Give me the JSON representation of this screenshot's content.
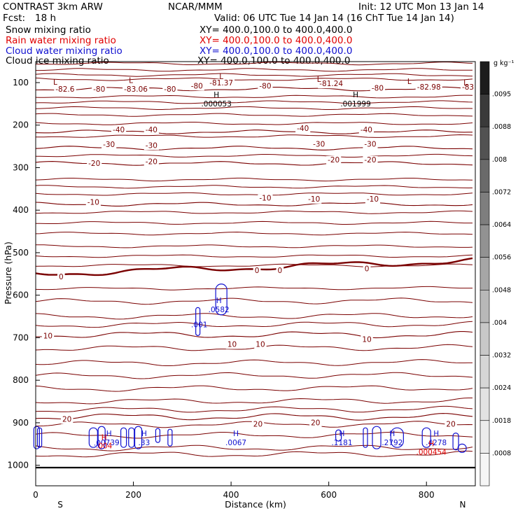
{
  "header": {
    "model": "CONTRAST  3km ARW",
    "org": "NCAR/MMM",
    "init": "Init: 12 UTC Mon 13 Jan 14",
    "fcst_label": "Fcst:",
    "fcst_value": "18 h",
    "valid": "Valid: 06 UTC Tue 14 Jan 14 (16 ChT Tue 14 Jan 14)"
  },
  "fields": [
    {
      "name": "Snow mixing ratio",
      "xy": "XY= 400.0,100.0 to 400.0,400.0",
      "color": "#000000"
    },
    {
      "name": "Rain water mixing ratio",
      "xy": "XY= 400.0,100.0 to 400.0,400.0",
      "color": "#e00000"
    },
    {
      "name": "Cloud water mixing ratio",
      "xy": "XY= 400.0,100.0 to 400.0,400.0",
      "color": "#1010d0"
    },
    {
      "name": "Cloud ice mixing ratio",
      "xy": "XY= 400.0,100.0 to 400.0,400.0",
      "color": "#000000"
    }
  ],
  "colors": {
    "temperature": "#7a0000",
    "cloud_water": "#1010d0",
    "rain": "#e00000",
    "frame": "#000000"
  },
  "chart_data": {
    "type": "contour",
    "xlabel": "Distance (km)",
    "ylabel": "Pressure (hPa)",
    "x_range": [
      0,
      900
    ],
    "y_range": [
      1040,
      40
    ],
    "x_ticks": [
      0,
      200,
      400,
      600,
      800
    ],
    "y_ticks": [
      100,
      200,
      300,
      400,
      500,
      600,
      700,
      800,
      900,
      1000
    ],
    "x_end_labels": {
      "left": "S",
      "right": "N"
    },
    "colorbar": {
      "unit": "g kg⁻¹",
      "labels": [
        ".0095",
        ".0088",
        ".008",
        ".0072",
        ".0064",
        ".0056",
        ".0048",
        ".004",
        ".0032",
        ".0024",
        ".0018",
        ".0008"
      ],
      "shades": [
        "#1c1c1c",
        "#3a3a3a",
        "#525252",
        "#6a6a6a",
        "#7e7e7e",
        "#929292",
        "#a6a6a6",
        "#b8b8b8",
        "#c8c8c8",
        "#d6d6d6",
        "#e2e2e2",
        "#ececec",
        "#f6f6f6"
      ]
    },
    "temperature_isotherms": [
      {
        "level": -80,
        "pressure": 115
      },
      {
        "level": -40,
        "pressure": 216
      },
      {
        "level": -30,
        "pressure": 254
      },
      {
        "level": -20,
        "pressure": 290
      },
      {
        "level": -10,
        "pressure": 386
      },
      {
        "level": 0,
        "pressure": 550
      },
      {
        "level": 10,
        "pressure": 693
      },
      {
        "level": 20,
        "pressure": 886
      }
    ],
    "temperature_labels": [
      {
        "x": 60,
        "p": 115,
        "text": "-82.6"
      },
      {
        "x": 130,
        "p": 115,
        "text": "-80"
      },
      {
        "x": 205,
        "p": 115,
        "text": "-83.06"
      },
      {
        "x": 275,
        "p": 115,
        "text": "-80"
      },
      {
        "x": 330,
        "p": 107,
        "text": "-80"
      },
      {
        "x": 380,
        "p": 100,
        "text": "-81.37"
      },
      {
        "x": 470,
        "p": 107,
        "text": "-80"
      },
      {
        "x": 605,
        "p": 102,
        "text": "-81.24"
      },
      {
        "x": 700,
        "p": 112,
        "text": "-80"
      },
      {
        "x": 805,
        "p": 110,
        "text": "-82.98"
      },
      {
        "x": 885,
        "p": 110,
        "text": "-83"
      },
      {
        "x": 170,
        "p": 210,
        "text": "-40"
      },
      {
        "x": 237,
        "p": 210,
        "text": "-40"
      },
      {
        "x": 547,
        "p": 207,
        "text": "-40"
      },
      {
        "x": 677,
        "p": 210,
        "text": "-40"
      },
      {
        "x": 150,
        "p": 245,
        "text": "-30"
      },
      {
        "x": 237,
        "p": 247,
        "text": "-30"
      },
      {
        "x": 580,
        "p": 244,
        "text": "-30"
      },
      {
        "x": 685,
        "p": 244,
        "text": "-30"
      },
      {
        "x": 120,
        "p": 289,
        "text": "-20"
      },
      {
        "x": 237,
        "p": 285,
        "text": "-20"
      },
      {
        "x": 610,
        "p": 281,
        "text": "-20"
      },
      {
        "x": 685,
        "p": 281,
        "text": "-20"
      },
      {
        "x": 118,
        "p": 381,
        "text": "-10"
      },
      {
        "x": 470,
        "p": 371,
        "text": "-10"
      },
      {
        "x": 570,
        "p": 373,
        "text": "-10"
      },
      {
        "x": 690,
        "p": 373,
        "text": "-10"
      },
      {
        "x": 52,
        "p": 556,
        "text": "0"
      },
      {
        "x": 453,
        "p": 541,
        "text": "0"
      },
      {
        "x": 500,
        "p": 541,
        "text": "0"
      },
      {
        "x": 678,
        "p": 537,
        "text": "0"
      },
      {
        "x": 25,
        "p": 695,
        "text": "10"
      },
      {
        "x": 402,
        "p": 715,
        "text": "10"
      },
      {
        "x": 460,
        "p": 715,
        "text": "10"
      },
      {
        "x": 678,
        "p": 703,
        "text": "10"
      },
      {
        "x": 64,
        "p": 891,
        "text": "20"
      },
      {
        "x": 455,
        "p": 903,
        "text": "20"
      },
      {
        "x": 573,
        "p": 899,
        "text": "20"
      },
      {
        "x": 850,
        "p": 903,
        "text": "20"
      }
    ],
    "low_markers": [
      {
        "x": 40,
        "p": 98
      },
      {
        "x": 195,
        "p": 94
      },
      {
        "x": 380,
        "p": 85
      },
      {
        "x": 580,
        "p": 92
      },
      {
        "x": 765,
        "p": 97
      },
      {
        "x": 880,
        "p": 100
      }
    ],
    "high_markers": [
      {
        "x": 370,
        "p": 138,
        "value": ".000053"
      },
      {
        "x": 655,
        "p": 138,
        "value": ".001999"
      }
    ],
    "cloud_water_maxima": [
      {
        "x": 375,
        "p": 620,
        "value": ".0582",
        "h": true
      },
      {
        "x": 335,
        "p": 656,
        "value": ".001",
        "h": false
      },
      {
        "x": 126,
        "p": 934,
        "value": ".0",
        "h": false
      },
      {
        "x": 150,
        "p": 933,
        "value": ".0739",
        "h": true
      },
      {
        "x": 222,
        "p": 933,
        "value": ".33",
        "h": true
      },
      {
        "x": 410,
        "p": 933,
        "value": ".0067",
        "h": true
      },
      {
        "x": 627,
        "p": 933,
        "value": ".1181",
        "h": true
      },
      {
        "x": 730,
        "p": 933,
        "value": ".2792",
        "h": true
      },
      {
        "x": 820,
        "p": 933,
        "value": ".4278",
        "h": true
      }
    ],
    "rain_maxima": [
      {
        "x": 140,
        "p": 942,
        "value": ".004",
        "h": true
      },
      {
        "x": 810,
        "p": 957,
        "value": ".000454",
        "h": true
      }
    ]
  }
}
